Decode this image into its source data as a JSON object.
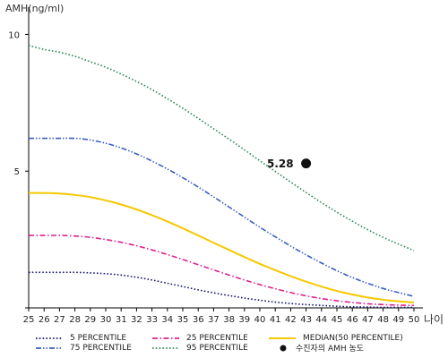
{
  "chart_data": {
    "type": "line",
    "ylabel": "AMH(ng/ml)",
    "xlabel": "나이",
    "x": [
      25,
      26,
      27,
      28,
      29,
      30,
      31,
      32,
      33,
      34,
      35,
      36,
      37,
      38,
      39,
      40,
      41,
      42,
      43,
      44,
      45,
      46,
      47,
      48,
      49,
      50
    ],
    "xlim": [
      25,
      50
    ],
    "ylim": [
      0,
      10.8
    ],
    "yticks": [
      5,
      10
    ],
    "grid": false,
    "legend_position": "bottom",
    "series": [
      {
        "name": "5 PERCENTILE",
        "color": "#1a1a6e",
        "dash": "dotted",
        "values": [
          1.3,
          1.3,
          1.3,
          1.3,
          1.28,
          1.25,
          1.2,
          1.12,
          1.02,
          0.9,
          0.78,
          0.66,
          0.55,
          0.45,
          0.36,
          0.28,
          0.21,
          0.16,
          0.12,
          0.09,
          0.06,
          0.04,
          0.03,
          0.02,
          0.02,
          0.02
        ]
      },
      {
        "name": "25 PERCENTILE",
        "color": "#e0208c",
        "dash": "dashdot",
        "values": [
          2.65,
          2.65,
          2.65,
          2.63,
          2.58,
          2.5,
          2.4,
          2.27,
          2.12,
          1.95,
          1.77,
          1.58,
          1.39,
          1.2,
          1.02,
          0.85,
          0.7,
          0.56,
          0.44,
          0.34,
          0.26,
          0.2,
          0.15,
          0.12,
          0.1,
          0.09
        ]
      },
      {
        "name": "MEDIAN(50 PERCENTILE)",
        "color": "#f5c800",
        "dash": "solid",
        "values": [
          4.2,
          4.2,
          4.18,
          4.13,
          4.05,
          3.93,
          3.78,
          3.6,
          3.39,
          3.16,
          2.91,
          2.65,
          2.38,
          2.12,
          1.86,
          1.61,
          1.38,
          1.16,
          0.96,
          0.78,
          0.62,
          0.49,
          0.38,
          0.3,
          0.24,
          0.2
        ]
      },
      {
        "name": "75 PERCENTILE",
        "color": "#3a5fbf",
        "dash": "dashdotdot",
        "values": [
          6.2,
          6.2,
          6.2,
          6.2,
          6.14,
          6.02,
          5.85,
          5.63,
          5.37,
          5.08,
          4.76,
          4.42,
          4.06,
          3.69,
          3.32,
          2.95,
          2.6,
          2.26,
          1.94,
          1.64,
          1.36,
          1.11,
          0.9,
          0.71,
          0.56,
          0.42
        ]
      },
      {
        "name": "95 PERCENTILE",
        "color": "#2e8b57",
        "dash": "dotted",
        "values": [
          9.6,
          9.45,
          9.35,
          9.2,
          9.0,
          8.8,
          8.55,
          8.28,
          7.98,
          7.65,
          7.3,
          6.93,
          6.55,
          6.17,
          5.78,
          5.38,
          4.99,
          4.6,
          4.22,
          3.85,
          3.5,
          3.17,
          2.86,
          2.58,
          2.33,
          2.1
        ]
      }
    ],
    "highlight": {
      "name": "수진자의 AMH 농도",
      "x": 43,
      "y": 5.28,
      "label": "5.28",
      "color": "#111111"
    }
  }
}
